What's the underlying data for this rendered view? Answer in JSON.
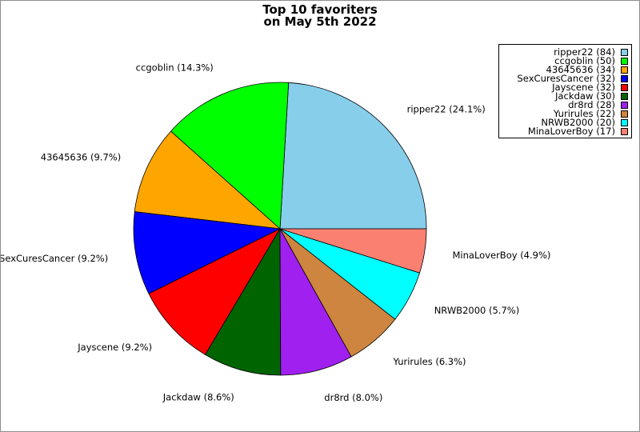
{
  "chart_data": {
    "type": "pie",
    "title": "Top 10 favoriters",
    "subtitle": "on May 5th 2022",
    "legend_position": "top-right",
    "slices": [
      {
        "name": "ripper22",
        "value": 84,
        "percent_label": "ripper22 (24.1%)",
        "legend_label": "ripper22 (84)",
        "color": "#87ceeb"
      },
      {
        "name": "ccgoblin",
        "value": 50,
        "percent_label": "ccgoblin (14.3%)",
        "legend_label": "ccgoblin (50)",
        "color": "#00ff00"
      },
      {
        "name": "43645636",
        "value": 34,
        "percent_label": "43645636 (9.7%)",
        "legend_label": "43645636 (34)",
        "color": "#ffa500"
      },
      {
        "name": "SexCuresCancer",
        "value": 32,
        "percent_label": "SexCuresCancer (9.2%)",
        "legend_label": "SexCuresCancer (32)",
        "color": "#0000ff"
      },
      {
        "name": "Jayscene",
        "value": 32,
        "percent_label": "Jayscene (9.2%)",
        "legend_label": "Jayscene (32)",
        "color": "#ff0000"
      },
      {
        "name": "Jackdaw",
        "value": 30,
        "percent_label": "Jackdaw (8.6%)",
        "legend_label": "Jackdaw (30)",
        "color": "#006400"
      },
      {
        "name": "dr8rd",
        "value": 28,
        "percent_label": "dr8rd (8.0%)",
        "legend_label": "dr8rd (28)",
        "color": "#a020f0"
      },
      {
        "name": "Yurirules",
        "value": 22,
        "percent_label": "Yurirules (6.3%)",
        "legend_label": "Yurirules (22)",
        "color": "#cd853f"
      },
      {
        "name": "NRWB2000",
        "value": 20,
        "percent_label": "NRWB2000 (5.7%)",
        "legend_label": "NRWB2000 (20)",
        "color": "#00ffff"
      },
      {
        "name": "MinaLoverBoy",
        "value": 17,
        "percent_label": "MinaLoverBoy (4.9%)",
        "legend_label": "MinaLoverBoy (17)",
        "color": "#fa8072"
      }
    ]
  }
}
